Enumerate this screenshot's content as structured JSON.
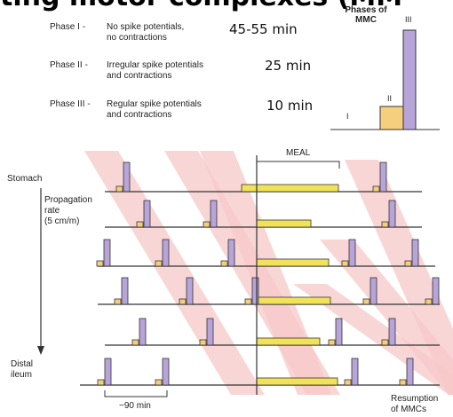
{
  "title": "ting motor complexes (MM",
  "phases": [
    {
      "code": "Phase I  -",
      "line1": "No spike potentials,",
      "line2": "no contractions",
      "duration": "45-55 min"
    },
    {
      "code": "Phase II  -",
      "line1": "Irregular spike potentials",
      "line2": "and contractions",
      "duration": "25 min"
    },
    {
      "code": "Phase III  -",
      "line1": "Regular spike potentials",
      "line2": "and contractions",
      "duration": "10 min"
    }
  ],
  "inset": {
    "title_line1": "Phases of",
    "title_line2": "MMC",
    "labels": [
      "I",
      "II",
      "III"
    ],
    "colors": {
      "phase2": "#f5cf7d",
      "phase3": "#b7a4d8"
    }
  },
  "diagram": {
    "meal_label": "MEAL",
    "stomach_label": "Stomach",
    "propagation_line1": "Propagation",
    "propagation_line2": "rate",
    "propagation_line3": "(5 cm/m)",
    "distal_line1": "Distal",
    "distal_line2": "ileum",
    "interval_label": "~90 min",
    "resumption_line1": "Resumption",
    "resumption_line2": "of MMCs",
    "colors": {
      "band": "#f7c8c8",
      "meal_bar": "#f2e25a",
      "phase2": "#f5cf7d",
      "phase3": "#b7a4d8",
      "line": "#333333"
    }
  }
}
